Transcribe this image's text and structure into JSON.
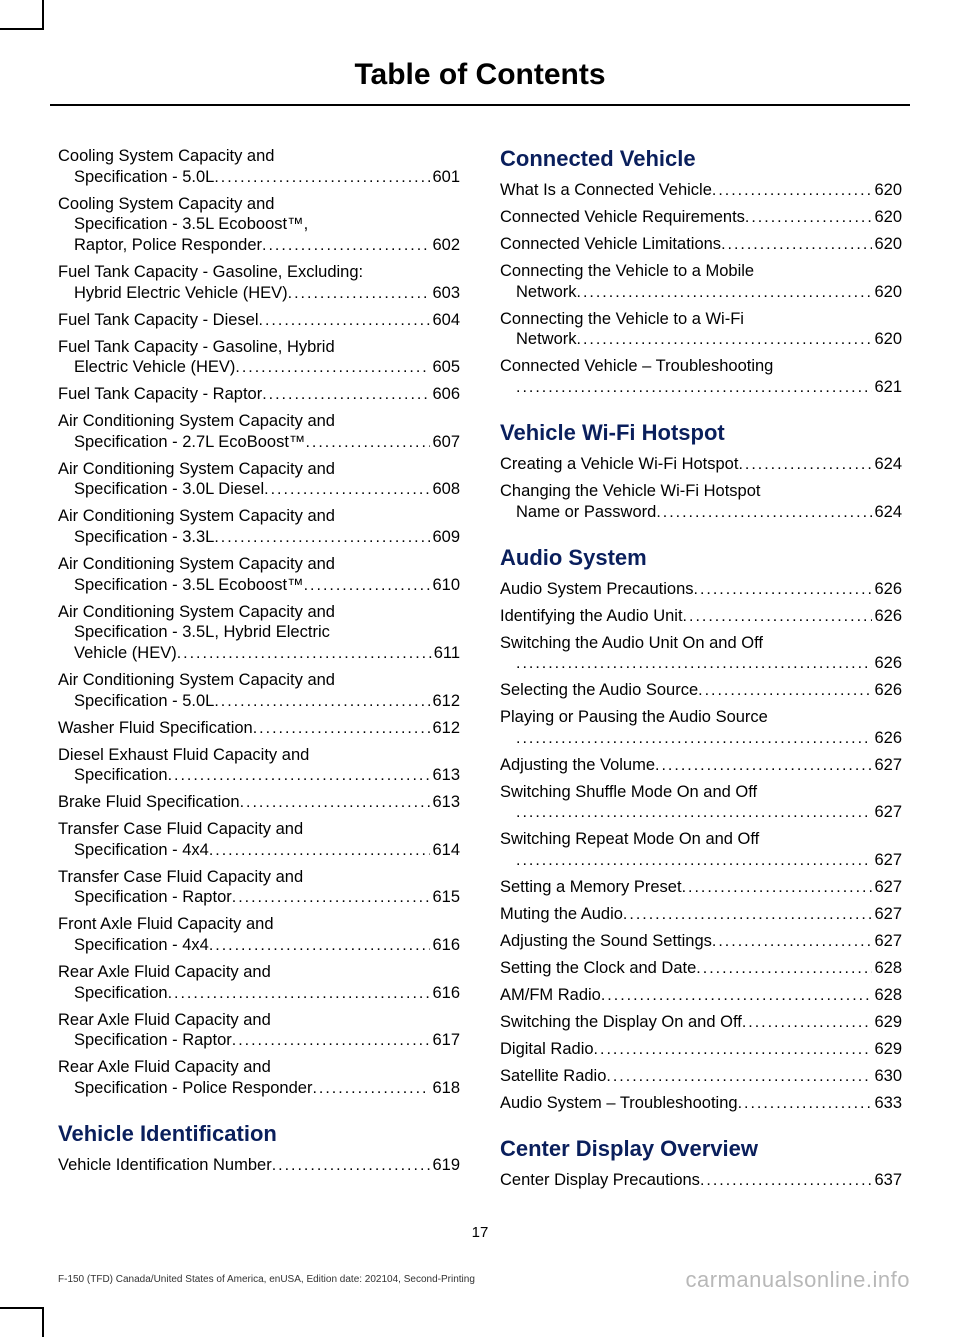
{
  "title": "Table of Contents",
  "pageNumber": "17",
  "footerLeft": "F-150 (TFD) Canada/United States of America, enUSA, Edition date: 202104, Second-Printing",
  "footerRight": "carmanualsonline.info",
  "left": [
    {
      "lines": [
        "Cooling System Capacity and",
        "Specification - 5.0L"
      ],
      "page": "601",
      "indent": true
    },
    {
      "lines": [
        "Cooling System Capacity and",
        "Specification - 3.5L Ecoboost™,",
        "Raptor, Police Responder"
      ],
      "page": "602",
      "indent": true
    },
    {
      "lines": [
        "Fuel Tank Capacity - Gasoline, Excluding:",
        "Hybrid Electric Vehicle (HEV)"
      ],
      "page": "603",
      "indent": true
    },
    {
      "lines": [
        "Fuel Tank Capacity - Diesel"
      ],
      "page": "604"
    },
    {
      "lines": [
        "Fuel Tank Capacity - Gasoline, Hybrid",
        "Electric Vehicle (HEV)"
      ],
      "page": "605",
      "indent": true
    },
    {
      "lines": [
        "Fuel Tank Capacity - Raptor"
      ],
      "page": "606"
    },
    {
      "lines": [
        "Air Conditioning System Capacity and",
        "Specification - 2.7L EcoBoost™"
      ],
      "page": "607",
      "indent": true
    },
    {
      "lines": [
        "Air Conditioning System Capacity and",
        "Specification - 3.0L Diesel"
      ],
      "page": "608",
      "indent": true
    },
    {
      "lines": [
        "Air Conditioning System Capacity and",
        "Specification - 3.3L"
      ],
      "page": "609",
      "indent": true
    },
    {
      "lines": [
        "Air Conditioning System Capacity and",
        "Specification - 3.5L Ecoboost™"
      ],
      "page": "610",
      "indent": true
    },
    {
      "lines": [
        "Air Conditioning System Capacity and",
        "Specification - 3.5L, Hybrid Electric",
        "Vehicle (HEV)"
      ],
      "page": "611",
      "indent": true
    },
    {
      "lines": [
        "Air Conditioning System Capacity and",
        "Specification - 5.0L"
      ],
      "page": "612",
      "indent": true
    },
    {
      "lines": [
        "Washer Fluid Specification"
      ],
      "page": "612"
    },
    {
      "lines": [
        "Diesel Exhaust Fluid Capacity and",
        "Specification"
      ],
      "page": "613",
      "indent": true
    },
    {
      "lines": [
        "Brake Fluid Specification"
      ],
      "page": "613"
    },
    {
      "lines": [
        "Transfer Case Fluid Capacity and",
        "Specification - 4x4"
      ],
      "page": "614",
      "indent": true
    },
    {
      "lines": [
        "Transfer Case Fluid Capacity and",
        "Specification - Raptor"
      ],
      "page": "615",
      "indent": true
    },
    {
      "lines": [
        "Front Axle Fluid Capacity and",
        "Specification - 4x4"
      ],
      "page": "616",
      "indent": true
    },
    {
      "lines": [
        "Rear Axle Fluid Capacity and",
        "Specification"
      ],
      "page": "616",
      "indent": true
    },
    {
      "lines": [
        "Rear Axle Fluid Capacity and",
        "Specification - Raptor"
      ],
      "page": "617",
      "indent": true
    },
    {
      "lines": [
        "Rear Axle Fluid Capacity and",
        "Specification - Police Responder"
      ],
      "page": "618",
      "indent": true
    },
    {
      "heading": "Vehicle Identification"
    },
    {
      "lines": [
        "Vehicle Identification Number"
      ],
      "page": "619"
    }
  ],
  "right": [
    {
      "heading": "Connected Vehicle",
      "first": true
    },
    {
      "lines": [
        "What Is a Connected Vehicle"
      ],
      "page": "620"
    },
    {
      "lines": [
        "Connected Vehicle Requirements"
      ],
      "page": "620"
    },
    {
      "lines": [
        "Connected Vehicle Limitations"
      ],
      "page": "620"
    },
    {
      "lines": [
        "Connecting the Vehicle to a Mobile",
        "Network"
      ],
      "page": "620",
      "indent": true
    },
    {
      "lines": [
        "Connecting the Vehicle to a Wi-Fi",
        "Network"
      ],
      "page": "620",
      "indent": true
    },
    {
      "lines": [
        "Connected Vehicle – Troubleshooting",
        ""
      ],
      "page": "621",
      "indent": true
    },
    {
      "heading": "Vehicle Wi-Fi Hotspot"
    },
    {
      "lines": [
        "Creating a Vehicle Wi-Fi Hotspot"
      ],
      "page": "624"
    },
    {
      "lines": [
        "Changing the Vehicle Wi-Fi Hotspot",
        "Name or Password"
      ],
      "page": "624",
      "indent": true
    },
    {
      "heading": "Audio System"
    },
    {
      "lines": [
        "Audio System Precautions"
      ],
      "page": "626"
    },
    {
      "lines": [
        "Identifying the Audio Unit"
      ],
      "page": "626"
    },
    {
      "lines": [
        "Switching the Audio Unit On and Off",
        ""
      ],
      "page": "626",
      "indent": true
    },
    {
      "lines": [
        "Selecting the Audio Source"
      ],
      "page": "626"
    },
    {
      "lines": [
        "Playing or Pausing the Audio Source",
        ""
      ],
      "page": "626",
      "indent": true
    },
    {
      "lines": [
        "Adjusting the Volume"
      ],
      "page": "627"
    },
    {
      "lines": [
        "Switching Shuffle Mode On and Off",
        ""
      ],
      "page": "627",
      "indent": true
    },
    {
      "lines": [
        "Switching Repeat Mode On and Off",
        ""
      ],
      "page": "627",
      "indent": true
    },
    {
      "lines": [
        "Setting a Memory Preset"
      ],
      "page": "627"
    },
    {
      "lines": [
        "Muting the Audio"
      ],
      "page": "627"
    },
    {
      "lines": [
        "Adjusting the Sound Settings"
      ],
      "page": "627"
    },
    {
      "lines": [
        "Setting the Clock and Date"
      ],
      "page": "628"
    },
    {
      "lines": [
        "AM/FM Radio"
      ],
      "page": "628"
    },
    {
      "lines": [
        "Switching the Display On and Off"
      ],
      "page": "629"
    },
    {
      "lines": [
        "Digital Radio"
      ],
      "page": "629"
    },
    {
      "lines": [
        "Satellite Radio"
      ],
      "page": "630"
    },
    {
      "lines": [
        "Audio System – Troubleshooting"
      ],
      "page": "633"
    },
    {
      "heading": "Center Display Overview"
    },
    {
      "lines": [
        "Center Display Precautions"
      ],
      "page": "637"
    }
  ]
}
